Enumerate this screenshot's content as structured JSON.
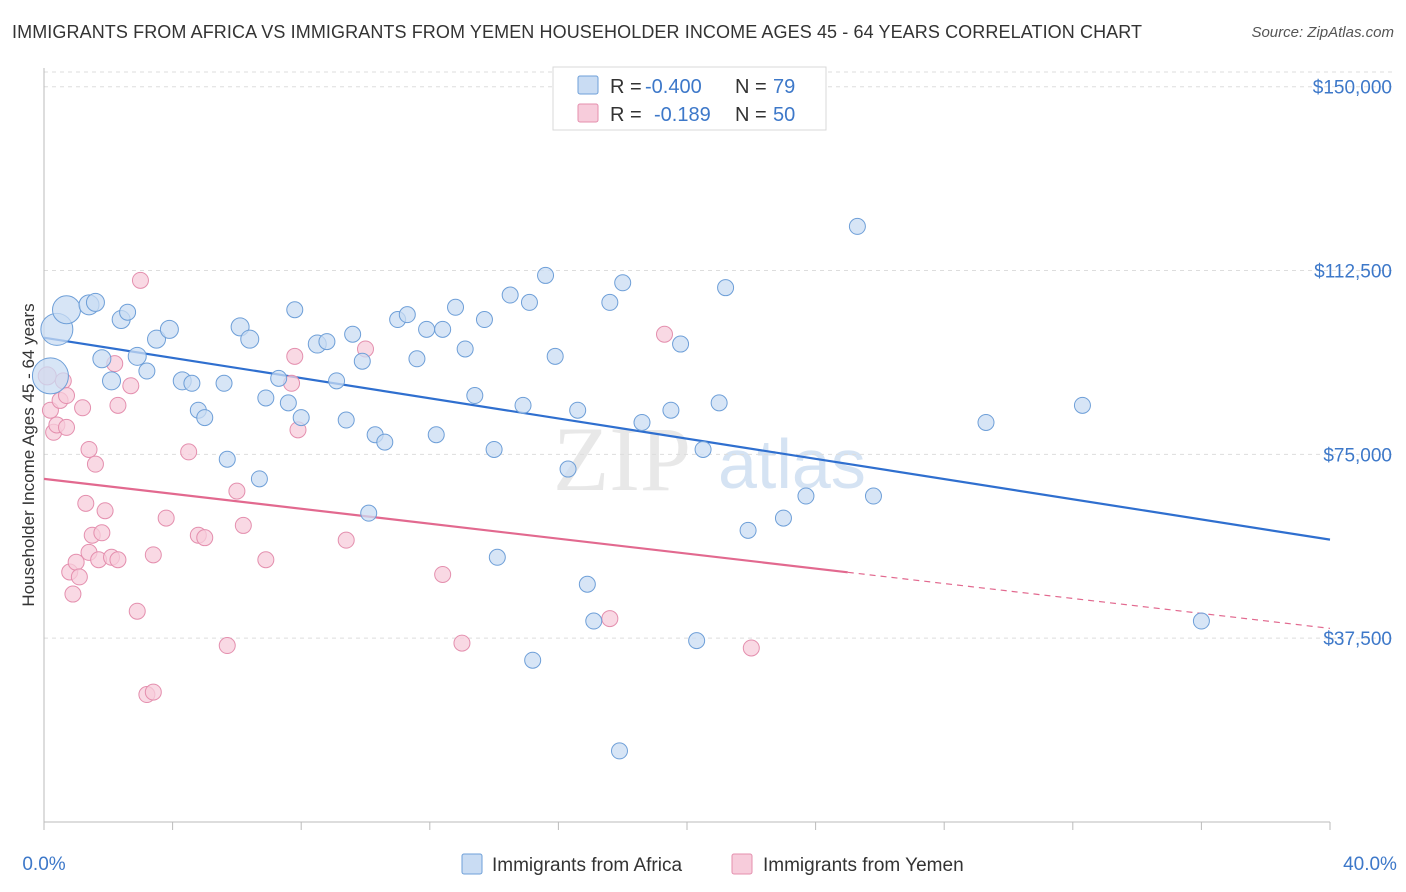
{
  "title": "IMMIGRANTS FROM AFRICA VS IMMIGRANTS FROM YEMEN HOUSEHOLDER INCOME AGES 45 - 64 YEARS CORRELATION CHART",
  "source": "Source: ZipAtlas.com",
  "watermark": {
    "zip": "ZIP",
    "atlas": "atlas"
  },
  "colors": {
    "africa_fill": "#c9dcf3",
    "africa_stroke": "#6e9fd8",
    "africa_line": "#2f6fcf",
    "yemen_fill": "#f7ccdb",
    "yemen_stroke": "#e48fae",
    "yemen_line": "#e2698f",
    "tick_text": "#3d78c9",
    "grid": "#dddddd"
  },
  "legend": {
    "rows": [
      {
        "r_label": "R = ",
        "r_value": "-0.400",
        "n_label": "N = ",
        "n_value": "79"
      },
      {
        "r_label": "R = ",
        "r_value": "-0.189",
        "n_label": "N = ",
        "n_value": "50"
      }
    ]
  },
  "chart_data": {
    "type": "scatter",
    "title": "IMMIGRANTS FROM AFRICA VS IMMIGRANTS FROM YEMEN HOUSEHOLDER INCOME AGES 45 - 64 YEARS CORRELATION CHART",
    "xlabel": "",
    "ylabel": "Householder Income Ages 45 - 64 years",
    "xlim": [
      0,
      40
    ],
    "ylim": [
      0,
      153000
    ],
    "x_tick_labels": [
      "0.0%",
      "40.0%"
    ],
    "y_ticks": [
      {
        "value": 37500,
        "label": "$37,500"
      },
      {
        "value": 75000,
        "label": "$75,000"
      },
      {
        "value": 112500,
        "label": "$112,500"
      },
      {
        "value": 150000,
        "label": "$150,000"
      }
    ],
    "grid": true,
    "legend_position": "top-center",
    "series": [
      {
        "name": "Immigrants from Africa",
        "r": -0.4,
        "n": 79,
        "trend": {
          "x0": 0.0,
          "y0": 98800,
          "x1": 40.0,
          "y1": 57600
        },
        "points": [
          [
            0.4,
            100500,
            16
          ],
          [
            0.7,
            104500,
            14
          ],
          [
            1.4,
            105500,
            10
          ],
          [
            1.6,
            106000,
            9
          ],
          [
            0.2,
            91000,
            18
          ],
          [
            1.8,
            94500,
            9
          ],
          [
            2.4,
            102500,
            9
          ],
          [
            2.6,
            104000,
            8
          ],
          [
            2.9,
            95000,
            9
          ],
          [
            3.2,
            92000,
            8
          ],
          [
            3.5,
            98500,
            9
          ],
          [
            3.9,
            100500,
            9
          ],
          [
            2.1,
            90000,
            9
          ],
          [
            4.3,
            90000,
            9
          ],
          [
            4.6,
            89500,
            8
          ],
          [
            4.8,
            84000,
            8
          ],
          [
            5.0,
            82500,
            8
          ],
          [
            5.6,
            89500,
            8
          ],
          [
            5.7,
            74000,
            8
          ],
          [
            6.1,
            101000,
            9
          ],
          [
            6.4,
            98500,
            9
          ],
          [
            6.7,
            70000,
            8
          ],
          [
            6.9,
            86500,
            8
          ],
          [
            7.3,
            90500,
            8
          ],
          [
            7.6,
            85500,
            8
          ],
          [
            7.8,
            104500,
            8
          ],
          [
            8.0,
            82500,
            8
          ],
          [
            8.5,
            97500,
            9
          ],
          [
            8.8,
            98000,
            8
          ],
          [
            9.1,
            90000,
            8
          ],
          [
            9.4,
            82000,
            8
          ],
          [
            9.6,
            99500,
            8
          ],
          [
            9.9,
            94000,
            8
          ],
          [
            10.1,
            63000,
            8
          ],
          [
            10.3,
            79000,
            8
          ],
          [
            10.6,
            77500,
            8
          ],
          [
            11.0,
            102500,
            8
          ],
          [
            11.3,
            103500,
            8
          ],
          [
            11.6,
            94500,
            8
          ],
          [
            11.9,
            100500,
            8
          ],
          [
            12.2,
            79000,
            8
          ],
          [
            12.4,
            100500,
            8
          ],
          [
            12.8,
            105000,
            8
          ],
          [
            13.1,
            96500,
            8
          ],
          [
            13.4,
            87000,
            8
          ],
          [
            13.7,
            102500,
            8
          ],
          [
            14.0,
            76000,
            8
          ],
          [
            14.5,
            107500,
            8
          ],
          [
            14.1,
            54000,
            8
          ],
          [
            14.9,
            85000,
            8
          ],
          [
            15.1,
            106000,
            8
          ],
          [
            15.6,
            111500,
            8
          ],
          [
            15.9,
            95000,
            8
          ],
          [
            15.2,
            33000,
            8
          ],
          [
            16.3,
            72000,
            8
          ],
          [
            16.6,
            84000,
            8
          ],
          [
            16.9,
            48500,
            8
          ],
          [
            17.1,
            41000,
            8
          ],
          [
            17.6,
            106000,
            8
          ],
          [
            18.0,
            110000,
            8
          ],
          [
            17.9,
            14500,
            8
          ],
          [
            18.6,
            81500,
            8
          ],
          [
            19.5,
            84000,
            8
          ],
          [
            19.8,
            97500,
            8
          ],
          [
            20.3,
            37000,
            8
          ],
          [
            20.5,
            76000,
            8
          ],
          [
            21.0,
            85500,
            8
          ],
          [
            21.2,
            109000,
            8
          ],
          [
            21.9,
            59500,
            8
          ],
          [
            23.0,
            62000,
            8
          ],
          [
            23.7,
            66500,
            8
          ],
          [
            25.3,
            121500,
            8
          ],
          [
            25.8,
            66500,
            8
          ],
          [
            29.3,
            81500,
            8
          ],
          [
            32.3,
            85000,
            8
          ],
          [
            36.0,
            41000,
            8
          ]
        ]
      },
      {
        "name": "Immigrants from Yemen",
        "r": -0.189,
        "n": 50,
        "trend": {
          "x0": 0.0,
          "y0": 70000,
          "x1": 40.0,
          "y1": 39500,
          "solid_until_x": 25.0
        },
        "points": [
          [
            0.1,
            91000,
            9
          ],
          [
            0.2,
            84000,
            8
          ],
          [
            0.3,
            79500,
            8
          ],
          [
            0.4,
            81000,
            8
          ],
          [
            0.5,
            86000,
            8
          ],
          [
            0.6,
            90000,
            8
          ],
          [
            0.7,
            87000,
            8
          ],
          [
            0.7,
            80500,
            8
          ],
          [
            0.8,
            51000,
            8
          ],
          [
            0.9,
            46500,
            8
          ],
          [
            1.0,
            53000,
            8
          ],
          [
            1.1,
            50000,
            8
          ],
          [
            1.2,
            84500,
            8
          ],
          [
            1.3,
            65000,
            8
          ],
          [
            1.4,
            55000,
            8
          ],
          [
            1.4,
            76000,
            8
          ],
          [
            1.5,
            58500,
            8
          ],
          [
            1.6,
            73000,
            8
          ],
          [
            1.7,
            53500,
            8
          ],
          [
            1.8,
            59000,
            8
          ],
          [
            1.9,
            63500,
            8
          ],
          [
            2.1,
            54000,
            8
          ],
          [
            2.2,
            93500,
            8
          ],
          [
            2.3,
            53500,
            8
          ],
          [
            2.3,
            85000,
            8
          ],
          [
            2.7,
            89000,
            8
          ],
          [
            2.9,
            43000,
            8
          ],
          [
            3.0,
            110500,
            8
          ],
          [
            3.2,
            26000,
            8
          ],
          [
            3.4,
            26500,
            8
          ],
          [
            3.4,
            54500,
            8
          ],
          [
            3.8,
            62000,
            8
          ],
          [
            4.5,
            75500,
            8
          ],
          [
            4.8,
            58500,
            8
          ],
          [
            5.0,
            58000,
            8
          ],
          [
            5.7,
            36000,
            8
          ],
          [
            6.0,
            67500,
            8
          ],
          [
            6.2,
            60500,
            8
          ],
          [
            6.9,
            53500,
            8
          ],
          [
            7.7,
            89500,
            8
          ],
          [
            7.8,
            95000,
            8
          ],
          [
            7.9,
            80000,
            8
          ],
          [
            9.4,
            57500,
            8
          ],
          [
            10.0,
            96500,
            8
          ],
          [
            12.4,
            50500,
            8
          ],
          [
            13.0,
            36500,
            8
          ],
          [
            17.6,
            41500,
            8
          ],
          [
            19.3,
            99500,
            8
          ],
          [
            22.0,
            35500,
            8
          ]
        ]
      }
    ]
  },
  "bottom_legend": [
    {
      "label": "Immigrants from Africa"
    },
    {
      "label": "Immigrants from Yemen"
    }
  ]
}
